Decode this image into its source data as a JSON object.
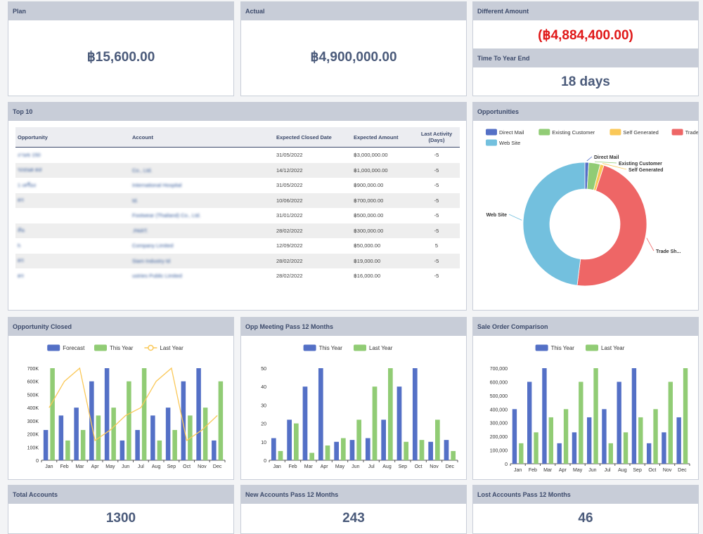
{
  "plan": {
    "title": "Plan",
    "value": "฿15,600.00"
  },
  "actual": {
    "title": "Actual",
    "value": "฿4,900,000.00"
  },
  "different": {
    "title": "Different Amount",
    "value": "(฿4,884,400.00)"
  },
  "year_end": {
    "title": "Time To Year End",
    "value": "18 days"
  },
  "top10": {
    "title": "Top 10",
    "columns": [
      "Opportunity",
      "Account",
      "Expected Closed Date",
      "Expected Amount",
      "Last Activity (Days)"
    ],
    "rows": [
      {
        "opportunity": "งานข 150",
        "account": "",
        "date": "31/05/2022",
        "amount": "฿3,000,000.00",
        "days": "-5"
      },
      {
        "opportunity": "รถยนต ตส",
        "account": "Co., Ltd.",
        "date": "14/12/2022",
        "amount": "฿1,000,000.00",
        "days": "-5"
      },
      {
        "opportunity": "1 เครื่อง",
        "account": "International Hospital",
        "date": "31/05/2022",
        "amount": "฿900,000.00",
        "days": "-5"
      },
      {
        "opportunity": "ตร",
        "account": "td.",
        "date": "10/06/2022",
        "amount": "฿700,000.00",
        "days": "-5"
      },
      {
        "opportunity": "",
        "account": "Footwear (Thailand) Co., Ltd.",
        "date": "31/01/2022",
        "amount": "฿500,000.00",
        "days": "-5"
      },
      {
        "opportunity": "สัน",
        "account": ".PART.",
        "date": "28/02/2022",
        "amount": "฿300,000.00",
        "days": "-5"
      },
      {
        "opportunity": "h",
        "account": "Company Limited",
        "date": "12/09/2022",
        "amount": "฿50,000.00",
        "days": "5"
      },
      {
        "opportunity": "ตร",
        "account": "Siam Industry td",
        "date": "28/02/2022",
        "amount": "฿19,000.00",
        "days": "-5"
      },
      {
        "opportunity": "ตร",
        "account": "ustries Public Limited",
        "date": "28/02/2022",
        "amount": "฿16,000.00",
        "days": "-5"
      }
    ]
  },
  "opportunities": {
    "title": "Opportunities",
    "chart_data": {
      "type": "pie",
      "legend_position": "top",
      "series": [
        {
          "name": "Direct Mail",
          "value": 1,
          "color": "#5470c6"
        },
        {
          "name": "Existing Customer",
          "value": 3,
          "color": "#91cc75"
        },
        {
          "name": "Self Generated",
          "value": 1,
          "color": "#fac858"
        },
        {
          "name": "Trade Show",
          "value": 47,
          "color": "#ee6666"
        },
        {
          "name": "Web Site",
          "value": 48,
          "color": "#73c0de"
        }
      ],
      "slice_labels": [
        "Direct Mail",
        "Existing Customer",
        "Self Generated",
        "Trade Sh...",
        "Web Site"
      ]
    }
  },
  "opp_closed": {
    "title": "Opportunity Closed",
    "chart_data": {
      "type": "bar",
      "legend_position": "top",
      "categories": [
        "Jan",
        "Feb",
        "Mar",
        "Apr",
        "May",
        "Jun",
        "Jul",
        "Aug",
        "Sep",
        "Oct",
        "Nov",
        "Dec"
      ],
      "ylim": [
        0,
        700000
      ],
      "yticks": [
        "0",
        "100K",
        "200K",
        "300K",
        "400K",
        "500K",
        "600K",
        "700K"
      ],
      "series": [
        {
          "name": "Forecast",
          "type": "bar",
          "color": "#5470c6",
          "values": [
            230000,
            340000,
            400000,
            600000,
            700000,
            150000,
            230000,
            340000,
            400000,
            600000,
            700000,
            150000
          ]
        },
        {
          "name": "This Year",
          "type": "bar",
          "color": "#91cc75",
          "values": [
            700000,
            150000,
            230000,
            340000,
            400000,
            600000,
            700000,
            150000,
            230000,
            340000,
            400000,
            600000
          ]
        },
        {
          "name": "Last Year",
          "type": "line",
          "color": "#fac858",
          "values": [
            400000,
            600000,
            700000,
            150000,
            230000,
            340000,
            400000,
            600000,
            700000,
            150000,
            230000,
            340000
          ]
        }
      ]
    }
  },
  "opp_meeting": {
    "title": "Opp Meeting Pass 12 Months",
    "chart_data": {
      "type": "bar",
      "legend_position": "top",
      "categories": [
        "Jan",
        "Feb",
        "Mar",
        "Apr",
        "May",
        "Jun",
        "Jul",
        "Aug",
        "Sep",
        "Oct",
        "Nov",
        "Dec"
      ],
      "ylim": [
        0,
        50
      ],
      "yticks": [
        "0",
        "10",
        "20",
        "30",
        "40",
        "50"
      ],
      "series": [
        {
          "name": "This Year",
          "type": "bar",
          "color": "#5470c6",
          "values": [
            12,
            22,
            40,
            50,
            10,
            11,
            12,
            22,
            40,
            50,
            10,
            11
          ]
        },
        {
          "name": "Last Year",
          "type": "bar",
          "color": "#91cc75",
          "values": [
            5,
            20,
            4,
            8,
            12,
            22,
            40,
            50,
            10,
            11,
            22,
            5
          ]
        }
      ]
    }
  },
  "sale_order": {
    "title": "Sale Order Comparison",
    "chart_data": {
      "type": "bar",
      "legend_position": "top",
      "categories": [
        "Jan",
        "Feb",
        "Mar",
        "Apr",
        "May",
        "Jun",
        "Jul",
        "Aug",
        "Sep",
        "Oct",
        "Nov",
        "Dec"
      ],
      "ylim": [
        0,
        700000
      ],
      "yticks": [
        "0",
        "100,000",
        "200,000",
        "300,000",
        "400,000",
        "500,000",
        "600,000",
        "700,000"
      ],
      "series": [
        {
          "name": "This Year",
          "type": "bar",
          "color": "#5470c6",
          "values": [
            400000,
            600000,
            700000,
            150000,
            230000,
            340000,
            400000,
            600000,
            700000,
            150000,
            230000,
            340000
          ]
        },
        {
          "name": "Last Year",
          "type": "bar",
          "color": "#91cc75",
          "values": [
            150000,
            230000,
            340000,
            400000,
            600000,
            700000,
            150000,
            230000,
            340000,
            400000,
            600000,
            700000
          ]
        }
      ]
    }
  },
  "total_accounts": {
    "title": "Total Accounts",
    "value": "1300"
  },
  "new_accounts": {
    "title": "New Accounts Pass 12 Months",
    "value": "243"
  },
  "lost_accounts": {
    "title": "Lost Accounts Pass 12 Months",
    "value": "46"
  }
}
